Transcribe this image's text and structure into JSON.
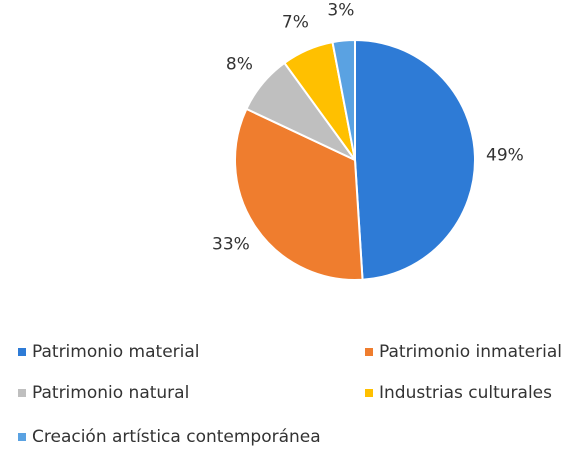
{
  "chart_data": {
    "type": "pie",
    "categories": [
      "Patrimonio material",
      "Patrimonio inmaterial",
      "Patrimonio natural",
      "Industrias culturales",
      "Creación artística contemporánea"
    ],
    "values": [
      49,
      33,
      8,
      7,
      3
    ],
    "value_labels": [
      "49%",
      "33%",
      "8%",
      "7%",
      "3%"
    ],
    "colors": [
      "#2e7bd6",
      "#ef7d2e",
      "#bfbfbf",
      "#ffc000",
      "#5aa2e2"
    ],
    "legend": "bottom"
  }
}
